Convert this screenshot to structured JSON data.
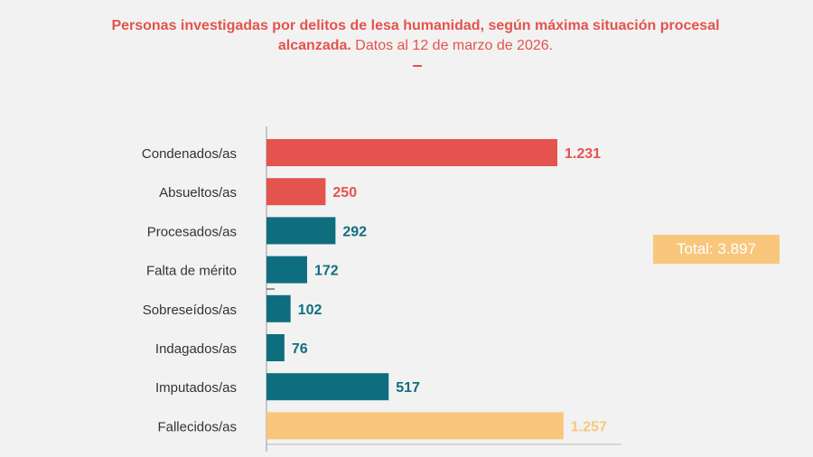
{
  "title_bold": "Personas investigadas por delitos de lesa humanidad, según máxima situación procesal alcanzada.",
  "title_regular": " Datos al 12 de marzo de 2026.",
  "total_label": "Total: 3.897",
  "chart_data": {
    "type": "bar",
    "orientation": "horizontal",
    "categories": [
      "Condenados/as",
      "Absueltos/as",
      "Procesados/as",
      "Falta de mérito",
      "Sobreseídos/as",
      "Indagados/as",
      "Imputados/as",
      "Fallecidos/as"
    ],
    "values": [
      1231,
      250,
      292,
      172,
      102,
      76,
      517,
      1257
    ],
    "value_labels": [
      "1.231",
      "250",
      "292",
      "172",
      "102",
      "76",
      "517",
      "1.257"
    ],
    "colors": [
      "#e4534d",
      "#e4534d",
      "#0f6e7e",
      "#0f6e7e",
      "#0f6e7e",
      "#0f6e7e",
      "#0f6e7e",
      "#f8c77c"
    ],
    "grid": false
  }
}
